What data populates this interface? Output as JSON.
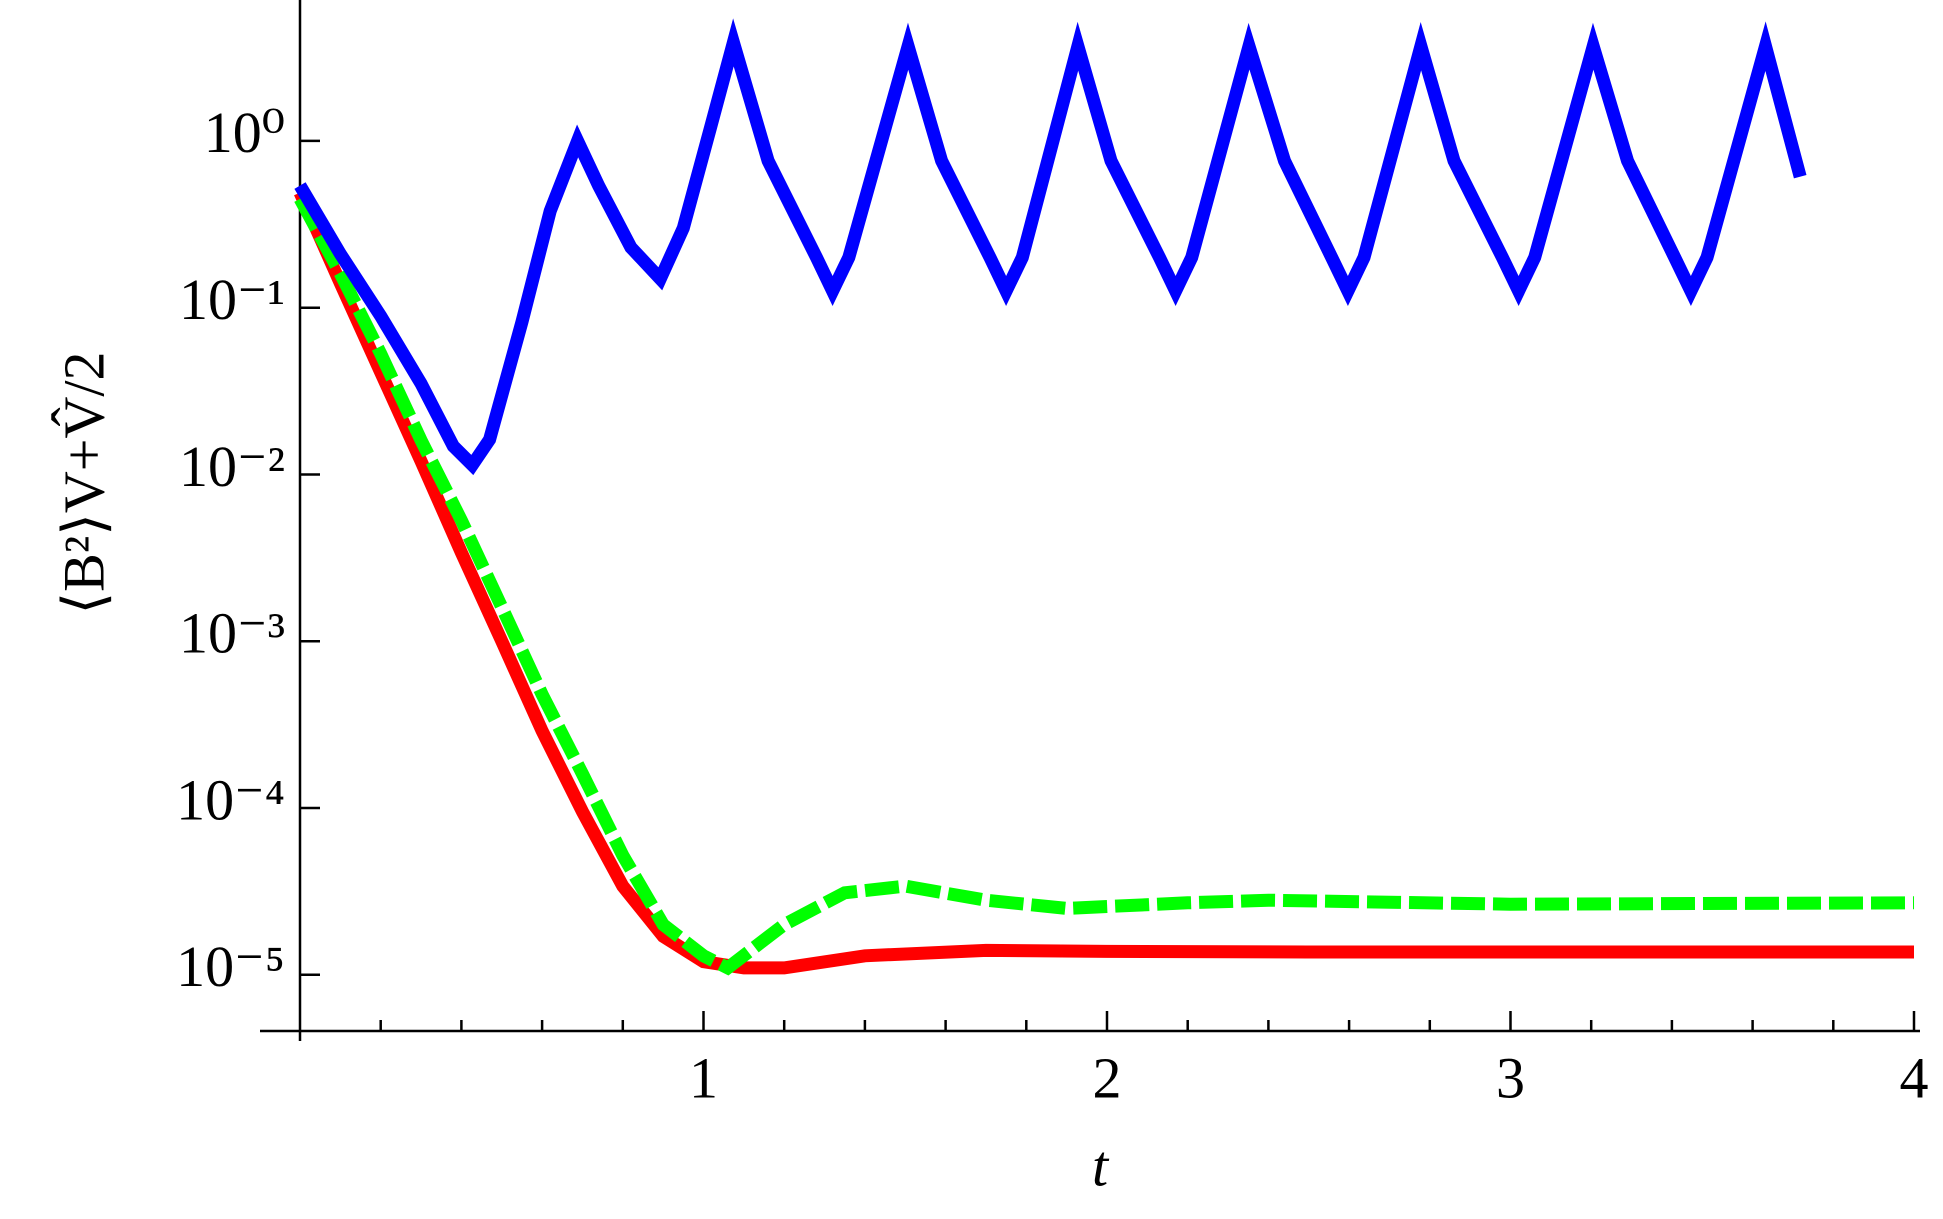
{
  "chart_data": {
    "type": "line",
    "xlabel": "t",
    "ylabel": "⟨B²⟩V+V̂/2",
    "yscale": "log",
    "xlim": [
      0,
      4
    ],
    "ylim": [
      4.6e-06,
      7.0
    ],
    "xticks": [
      1,
      2,
      3,
      4
    ],
    "xminorticks": [
      0.2,
      0.4,
      0.6,
      0.8,
      1.2,
      1.4,
      1.6,
      1.8,
      2.2,
      2.4,
      2.6,
      2.8,
      3.2,
      3.4,
      3.6,
      3.8
    ],
    "yticks": [
      {
        "value": 1,
        "label": "10⁰"
      },
      {
        "value": 0.1,
        "label": "10⁻¹"
      },
      {
        "value": 0.01,
        "label": "10⁻²"
      },
      {
        "value": 0.001,
        "label": "10⁻³"
      },
      {
        "value": 0.0001,
        "label": "10⁻⁴"
      },
      {
        "value": 1e-05,
        "label": "10⁻⁵"
      }
    ],
    "series": [
      {
        "color": "#ff0000",
        "linestyle": "solid",
        "x": [
          0,
          0.1,
          0.2,
          0.3,
          0.4,
          0.5,
          0.6,
          0.7,
          0.8,
          0.9,
          1.0,
          1.1,
          1.2,
          1.4,
          1.7,
          2,
          2.5,
          3,
          3.5,
          4
        ],
        "values": [
          0.49,
          0.14,
          0.041,
          0.012,
          0.0034,
          0.001,
          0.00029,
          9.5e-05,
          3.4e-05,
          1.7e-05,
          1.2e-05,
          1.1e-05,
          1.1e-05,
          1.3e-05,
          1.4e-05,
          1.38e-05,
          1.37e-05,
          1.37e-05,
          1.37e-05,
          1.37e-05
        ]
      },
      {
        "color": "#00ff00",
        "linestyle": "dashed",
        "x": [
          0,
          0.1,
          0.2,
          0.3,
          0.4,
          0.5,
          0.6,
          0.7,
          0.8,
          0.9,
          1.0,
          1.06,
          1.2,
          1.35,
          1.5,
          1.7,
          1.9,
          2.2,
          2.4,
          3,
          4
        ],
        "values": [
          0.45,
          0.16,
          0.053,
          0.016,
          0.0053,
          0.0016,
          0.00048,
          0.00016,
          5.2e-05,
          2e-05,
          1.3e-05,
          1.1e-05,
          2e-05,
          3.1e-05,
          3.4e-05,
          2.8e-05,
          2.5e-05,
          2.7e-05,
          2.8e-05,
          2.65e-05,
          2.7e-05
        ]
      },
      {
        "color": "#0000ff",
        "linestyle": "solid",
        "x": [
          0,
          0.1,
          0.2,
          0.3,
          0.38,
          0.427,
          0.47,
          0.55,
          0.62,
          0.688,
          0.74,
          0.82,
          0.893,
          0.95,
          1.02,
          1.074,
          1.16,
          1.28,
          1.32,
          1.36,
          1.507,
          1.59,
          1.71,
          1.75,
          1.79,
          1.928,
          2.01,
          2.13,
          2.17,
          2.21,
          2.352,
          2.44,
          2.557,
          2.597,
          2.637,
          2.778,
          2.86,
          2.98,
          3.02,
          3.06,
          3.205,
          3.29,
          3.407,
          3.447,
          3.487,
          3.632,
          3.718
        ],
        "values": [
          0.54,
          0.21,
          0.089,
          0.035,
          0.0148,
          0.0114,
          0.0162,
          0.082,
          0.38,
          1.0,
          0.54,
          0.23,
          0.149,
          0.3,
          1.27,
          3.9,
          0.76,
          0.2,
          0.126,
          0.2,
          3.7,
          0.76,
          0.2,
          0.126,
          0.2,
          3.7,
          0.76,
          0.2,
          0.126,
          0.2,
          3.7,
          0.76,
          0.2,
          0.126,
          0.2,
          3.7,
          0.76,
          0.2,
          0.126,
          0.2,
          3.7,
          0.76,
          0.2,
          0.126,
          0.2,
          3.7,
          0.61
        ]
      }
    ]
  }
}
